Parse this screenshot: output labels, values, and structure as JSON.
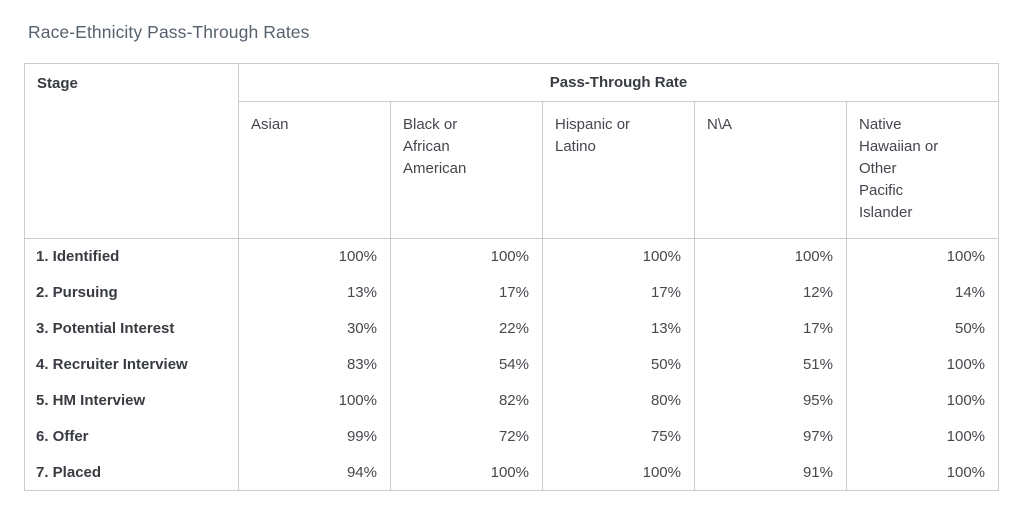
{
  "page": {
    "title": "Race-Ethnicity Pass-Through Rates"
  },
  "table": {
    "stage_header": "Stage",
    "group_header": "Pass-Through Rate",
    "columns": [
      "Asian",
      "Black or\nAfrican\nAmerican",
      "Hispanic or\nLatino",
      "N\\A",
      "Native\nHawaiian or\nOther\nPacific\nIslander"
    ],
    "rows": [
      {
        "stage": "1. Identified",
        "values": [
          "100%",
          "100%",
          "100%",
          "100%",
          "100%"
        ]
      },
      {
        "stage": "2. Pursuing",
        "values": [
          "13%",
          "17%",
          "17%",
          "12%",
          "14%"
        ]
      },
      {
        "stage": "3. Potential Interest",
        "values": [
          "30%",
          "22%",
          "13%",
          "17%",
          "50%"
        ]
      },
      {
        "stage": "4. Recruiter Interview",
        "values": [
          "83%",
          "54%",
          "50%",
          "51%",
          "100%"
        ]
      },
      {
        "stage": "5. HM Interview",
        "values": [
          "100%",
          "82%",
          "80%",
          "95%",
          "100%"
        ]
      },
      {
        "stage": "6. Offer",
        "values": [
          "99%",
          "72%",
          "75%",
          "97%",
          "100%"
        ]
      },
      {
        "stage": "7. Placed",
        "values": [
          "94%",
          "100%",
          "100%",
          "91%",
          "100%"
        ]
      }
    ]
  },
  "chart_data": {
    "type": "table",
    "title": "Race-Ethnicity Pass-Through Rates",
    "row_header": "Stage",
    "value_group_header": "Pass-Through Rate",
    "unit": "%",
    "categories": [
      "1. Identified",
      "2. Pursuing",
      "3. Potential Interest",
      "4. Recruiter Interview",
      "5. HM Interview",
      "6. Offer",
      "7. Placed"
    ],
    "series": [
      {
        "name": "Asian",
        "values": [
          100,
          13,
          30,
          83,
          100,
          99,
          94
        ]
      },
      {
        "name": "Black or African American",
        "values": [
          100,
          17,
          22,
          54,
          82,
          72,
          100
        ]
      },
      {
        "name": "Hispanic or Latino",
        "values": [
          100,
          17,
          13,
          50,
          80,
          75,
          100
        ]
      },
      {
        "name": "N\\A",
        "values": [
          100,
          12,
          17,
          51,
          95,
          97,
          91
        ]
      },
      {
        "name": "Native Hawaiian or Other Pacific Islander",
        "values": [
          100,
          14,
          50,
          100,
          100,
          100,
          100
        ]
      }
    ],
    "colors": {
      "title_text": "#57616e",
      "header_text": "#383c42",
      "body_text": "#45484d",
      "border": "#c9cdd2",
      "background": "#ffffff"
    }
  }
}
